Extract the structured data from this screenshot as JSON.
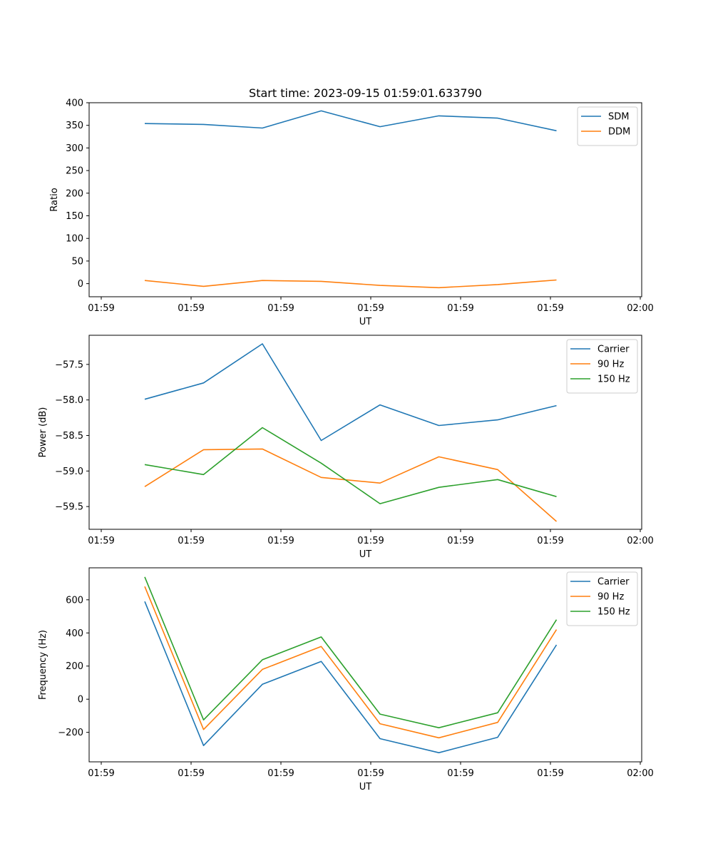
{
  "figure": {
    "title": "Start time: 2023-09-15 01:59:01.633790"
  },
  "colors": {
    "c0": "#1f77b4",
    "c1": "#ff7f0e",
    "c2": "#2ca02c"
  },
  "chart_data": [
    {
      "type": "line",
      "title": "Start time: 2023-09-15 01:59:01.633790",
      "xlabel": "UT",
      "ylabel": "Ratio",
      "x_tick_labels": [
        "01:59",
        "01:59",
        "01:59",
        "01:59",
        "01:59",
        "01:59",
        "02:00"
      ],
      "y_ticks": [
        0,
        50,
        100,
        150,
        200,
        250,
        300,
        350,
        400
      ],
      "y_tick_labels": [
        "0",
        "50",
        "100",
        "150",
        "200",
        "250",
        "300",
        "350",
        "400"
      ],
      "ylim": [
        -29,
        400
      ],
      "legend_position": "top-right",
      "series": [
        {
          "name": "SDM",
          "color": "#1f77b4",
          "values": [
            354,
            352,
            344,
            382,
            347,
            371,
            366,
            338
          ]
        },
        {
          "name": "DDM",
          "color": "#ff7f0e",
          "values": [
            7,
            -6,
            7,
            5,
            -4,
            -9,
            -2,
            8
          ]
        }
      ]
    },
    {
      "type": "line",
      "title": "",
      "xlabel": "UT",
      "ylabel": "Power (dB)",
      "x_tick_labels": [
        "01:59",
        "01:59",
        "01:59",
        "01:59",
        "01:59",
        "01:59",
        "02:00"
      ],
      "y_ticks": [
        -59.5,
        -59.0,
        -58.5,
        -58.0,
        -57.5
      ],
      "y_tick_labels": [
        "−59.5",
        "−59.0",
        "−58.5",
        "−58.0",
        "−57.5"
      ],
      "ylim": [
        -59.82,
        -57.09
      ],
      "legend_position": "top-right",
      "series": [
        {
          "name": "Carrier",
          "color": "#1f77b4",
          "values": [
            -57.99,
            -57.76,
            -57.21,
            -58.57,
            -58.07,
            -58.36,
            -58.28,
            -58.08
          ]
        },
        {
          "name": "90 Hz",
          "color": "#ff7f0e",
          "values": [
            -59.22,
            -58.7,
            -58.69,
            -59.09,
            -59.17,
            -58.8,
            -58.98,
            -59.71
          ]
        },
        {
          "name": "150 Hz",
          "color": "#2ca02c",
          "values": [
            -58.91,
            -59.05,
            -58.39,
            -58.89,
            -59.46,
            -59.23,
            -59.12,
            -59.36
          ]
        }
      ]
    },
    {
      "type": "line",
      "title": "",
      "xlabel": "UT",
      "ylabel": "Frequency (Hz)",
      "x_tick_labels": [
        "01:59",
        "01:59",
        "01:59",
        "01:59",
        "01:59",
        "01:59",
        "02:00"
      ],
      "y_ticks": [
        -200,
        0,
        200,
        400,
        600
      ],
      "y_tick_labels": [
        "−200",
        "0",
        "200",
        "400",
        "600"
      ],
      "ylim": [
        -378,
        793
      ],
      "legend_position": "top-right",
      "series": [
        {
          "name": "Carrier",
          "color": "#1f77b4",
          "values": [
            590,
            -280,
            90,
            228,
            -238,
            -323,
            -230,
            328
          ]
        },
        {
          "name": "90 Hz",
          "color": "#ff7f0e",
          "values": [
            680,
            -183,
            180,
            318,
            -148,
            -233,
            -140,
            420
          ]
        },
        {
          "name": "150 Hz",
          "color": "#2ca02c",
          "values": [
            738,
            -125,
            238,
            376,
            -90,
            -172,
            -82,
            480
          ]
        }
      ]
    }
  ]
}
